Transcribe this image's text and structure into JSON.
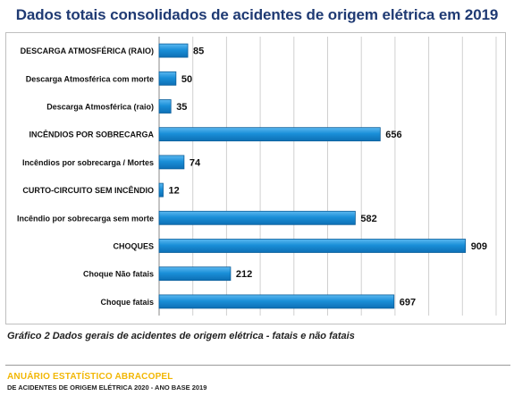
{
  "report": {
    "caption": "Gráfico 2 Dados gerais de acidentes de origem elétrica - fatais e não fatais",
    "brand": "ANUÁRIO ESTATÍSTICO ABRACOPEL",
    "subtitle": "DE ACIDENTES DE ORIGEM ELÉTRICA 2020 - ANO BASE 2019"
  },
  "chart_data": {
    "type": "bar",
    "orientation": "horizontal",
    "title": "Dados totais consolidados de acidentes de origem elétrica em 2019",
    "categories": [
      "DESCARGA ATMOSFÉRICA (RAIO)",
      "Descarga Atmosférica com morte",
      "Descarga Atmosférica (raio)",
      "INCÊNDIOS POR SOBRECARGA",
      "Incêndios por sobrecarga / Mortes",
      "CURTO-CIRCUITO SEM INCÊNDIO",
      "Incêndio por sobrecarga sem morte",
      "CHOQUES",
      "Choque Não fatais",
      "Choque fatais"
    ],
    "values": [
      85,
      50,
      35,
      656,
      74,
      12,
      582,
      909,
      212,
      697
    ],
    "xlim": [
      0,
      1000
    ],
    "grid": true,
    "data_labels": true,
    "colors": {
      "bar": "#1a8fd8",
      "bar_edge": "#0b5e9a",
      "title": "#1f3a73",
      "grid": "#d0d0d0"
    }
  }
}
